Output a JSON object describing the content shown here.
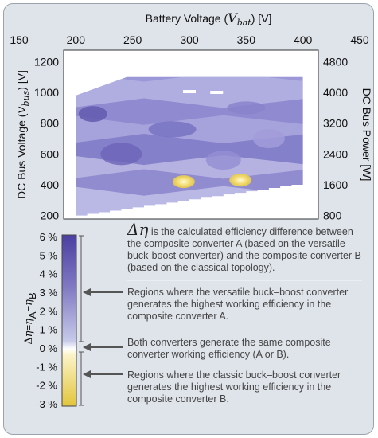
{
  "chart_data": [
    {
      "type": "heatmap",
      "x_top_label": "Battery Voltage (V_bat) [V]",
      "x_top_label_parts": {
        "prefix": "Battery Voltage (",
        "symbol": "V",
        "sub": "bat",
        "suffix": ") [V]"
      },
      "x_ticks": [
        "150",
        "200",
        "250",
        "300",
        "350",
        "400",
        "450"
      ],
      "x_values": [
        150,
        200,
        250,
        300,
        350,
        400,
        450
      ],
      "xlim": [
        150,
        450
      ],
      "y_left_label": "DC Bus Voltage (v_bus) [V]",
      "y_left_label_parts": {
        "prefix": "DC Bus Voltage (",
        "symbol": "v",
        "sub": "bus",
        "suffix": ") [V]"
      },
      "y_left_ticks": [
        "1200",
        "1000",
        "800",
        "600",
        "400",
        "200"
      ],
      "y_left_values": [
        1200,
        1000,
        800,
        600,
        400,
        200
      ],
      "ylim": [
        100,
        1300
      ],
      "y_right_label": "DC Bus Power [W]",
      "y_right_ticks": [
        "4800",
        "4000",
        "3200",
        "2400",
        "1600",
        "800"
      ],
      "y_right_values": [
        4800,
        4000,
        3200,
        2400,
        1600,
        800
      ],
      "z_quantity": "efficiency difference (%)",
      "data_region": {
        "x_range": [
          200,
          400
        ],
        "y_bottom_at_xmin": 190,
        "y_bottom_at_xmax": 400,
        "y_top": 1100
      },
      "hotspots": [
        {
          "x": 295,
          "y": 420,
          "value": -2.5
        },
        {
          "x": 345,
          "y": 430,
          "value": -2.0
        },
        {
          "x": 300,
          "y": 1005,
          "value": 0.0
        },
        {
          "x": 324,
          "y": 1000,
          "value": 0.0
        }
      ],
      "background_value_range": [
        1.0,
        6.0
      ]
    },
    {
      "type": "colorbar",
      "label": "Δη=η_A−η_B",
      "label_parts": {
        "delta": "Δ",
        "eta": "η",
        "sub_a": "A",
        "sub_b": "B",
        "minus": "−",
        "equals": "="
      },
      "ticks": [
        "6 %",
        "5 %",
        "4 %",
        "3 %",
        "2 %",
        "1 %",
        "0 %",
        "-1 %",
        "-2 %",
        "-3 %"
      ],
      "tick_values": [
        6,
        5,
        4,
        3,
        2,
        1,
        0,
        -1,
        -2,
        -3
      ],
      "range": [
        -3,
        6
      ]
    }
  ],
  "annotations": {
    "intro_symbol": "Δη",
    "intro_text": "is the calculated efficiency difference between the composite converter A (based on the versatile buck-boost converter) and the composite converter B (based on the classical topology).",
    "versatile_text": "Regions where the versatile buck–boost converter generates the highest working efficiency in the composite converter A.",
    "same_text": "Both converters generate the same composite converter working efficiency (A or B).",
    "classic_text": "Regions where the classic buck–boost converter generates the highest working efficiency in the composite converter B."
  },
  "colors": {
    "panel_bg": "#dfe4ea",
    "plot_bg": "#ffffff",
    "positive_max": "#4a3fa0",
    "positive_min": "#ccd0ec",
    "zero": "#ffffff",
    "negative_min": "#fbf3c8",
    "negative_max": "#e2c53c",
    "arrow": "#555555"
  }
}
